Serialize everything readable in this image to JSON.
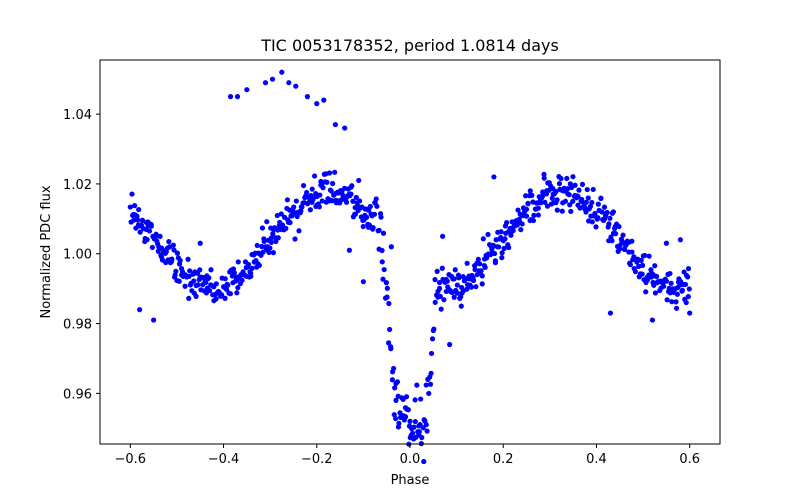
{
  "chart_data": {
    "type": "scatter",
    "title": "TIC 0053178352, period 1.0814 days",
    "xlabel": "Phase",
    "ylabel": "Normalized PDC flux",
    "xlim": [
      -0.665,
      0.665
    ],
    "ylim": [
      0.9455,
      1.0555
    ],
    "xticks": [
      -0.6,
      -0.4,
      -0.2,
      0.0,
      0.2,
      0.4,
      0.6
    ],
    "xtick_labels": [
      "−0.6",
      "−0.4",
      "−0.2",
      "0.0",
      "0.2",
      "0.4",
      "0.6"
    ],
    "yticks": [
      0.96,
      0.98,
      1.0,
      1.02,
      1.04
    ],
    "ytick_labels": [
      "0.96",
      "0.98",
      "1.00",
      "1.02",
      "1.04"
    ],
    "grid": false,
    "legend": "none",
    "color": "#0000ff",
    "model": {
      "base": 1.004,
      "sin_amp": 0.014,
      "sin_phase": 0.2,
      "sin_period": 0.5,
      "eclipse_depth": 0.044,
      "eclipse_width": 0.043,
      "noise": 0.0025,
      "x_start": -0.6,
      "x_end": 0.6,
      "count": 760
    },
    "outliers": [
      [
        -0.385,
        1.045
      ],
      [
        -0.37,
        1.045
      ],
      [
        -0.35,
        1.047
      ],
      [
        -0.31,
        1.049
      ],
      [
        -0.295,
        1.05
      ],
      [
        -0.275,
        1.052
      ],
      [
        -0.26,
        1.049
      ],
      [
        -0.245,
        1.048
      ],
      [
        -0.22,
        1.045
      ],
      [
        -0.2,
        1.043
      ],
      [
        -0.185,
        1.044
      ],
      [
        -0.16,
        1.037
      ],
      [
        -0.14,
        1.036
      ],
      [
        -0.11,
        1.021
      ],
      [
        -0.04,
        1.002
      ],
      [
        0.07,
        1.005
      ],
      [
        0.085,
        0.974
      ],
      [
        0.11,
        0.985
      ],
      [
        0.18,
        1.022
      ],
      [
        0.43,
        0.983
      ],
      [
        0.52,
        0.981
      ],
      [
        0.6,
        0.983
      ],
      [
        -0.55,
        0.981
      ],
      [
        -0.58,
        0.984
      ],
      [
        -0.45,
        1.003
      ],
      [
        0.0,
        0.952
      ],
      [
        0.02,
        0.949
      ],
      [
        -0.03,
        0.958
      ],
      [
        -0.1,
        0.992
      ],
      [
        -0.13,
        1.001
      ],
      [
        0.55,
        1.003
      ],
      [
        0.58,
        1.004
      ]
    ]
  }
}
